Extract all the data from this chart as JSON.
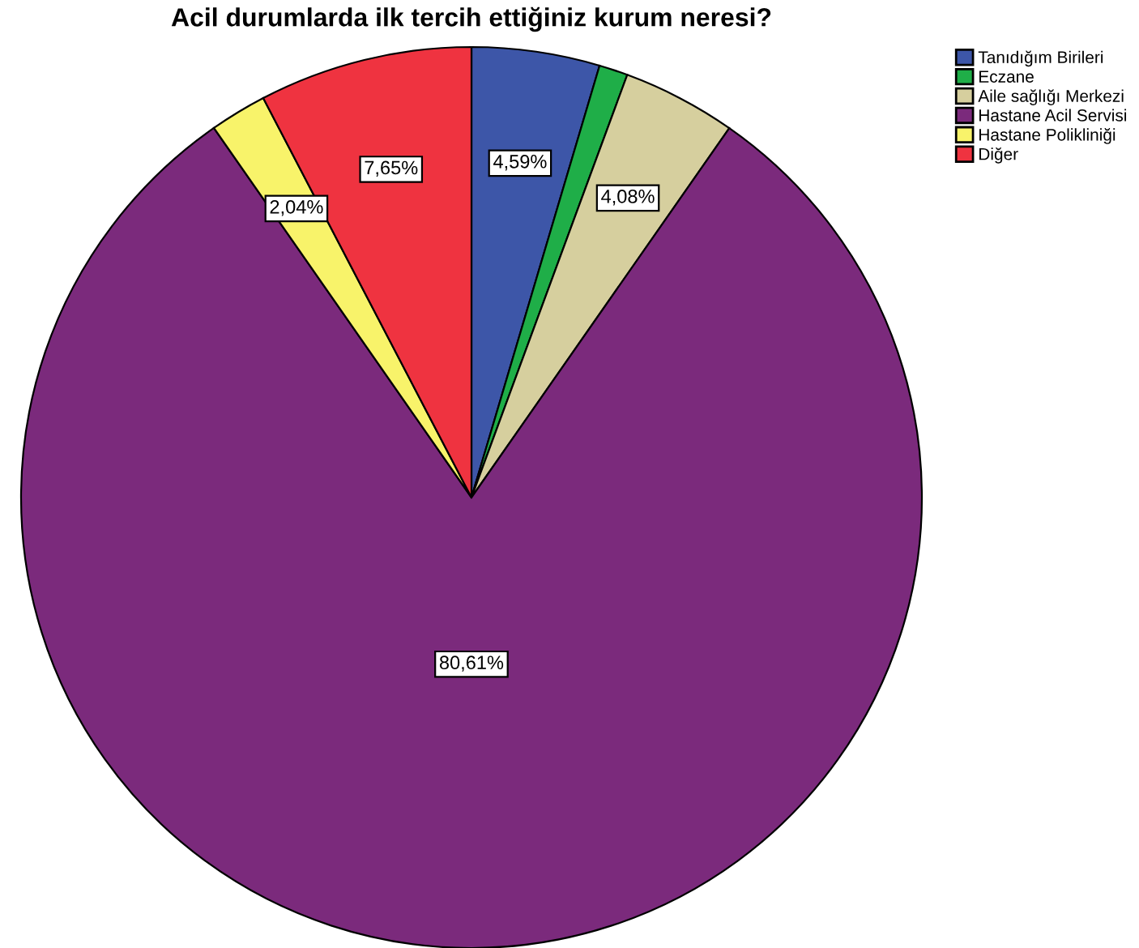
{
  "chart_data": {
    "type": "pie",
    "title": "Acil durumlarda ilk tercih ettiğiniz kurum neresi?",
    "categories": [
      "Tanıdığım Birileri",
      "Eczane",
      "Aile sağlığı Merkezi",
      "Hastane Acil Servisi",
      "Hastane Polikliniği",
      "Diğer"
    ],
    "values": [
      4.59,
      1.03,
      4.08,
      80.61,
      2.04,
      7.65
    ],
    "value_labels": [
      "4,59%",
      null,
      "4,08%",
      "80,61%",
      "2,04%",
      "7,65%"
    ],
    "colors": [
      "#3d56a8",
      "#1fae48",
      "#d6cf9e",
      "#7b2a7c",
      "#f8f36a",
      "#ef3340"
    ],
    "legend": "top right"
  }
}
